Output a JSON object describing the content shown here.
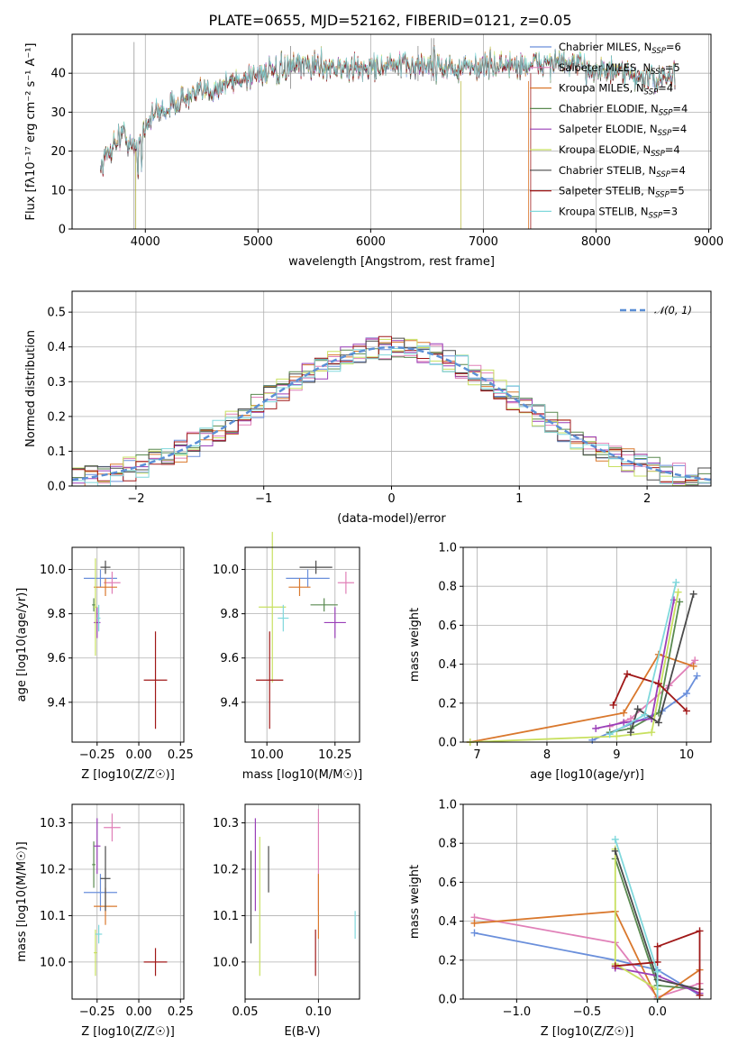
{
  "colors": {
    "cornflower": "#6a8fdb",
    "orange": "#d9782d",
    "green": "#5a8a50",
    "purple": "#9a3fb8",
    "yellowgreen": "#c8e060",
    "darkgrey": "#4a4a4a",
    "darkred": "#a01818",
    "cyan": "#80d8dc",
    "pink": "#e080b8",
    "spectrum_fit_dashed": "#5b8fd6"
  },
  "chart_data": [
    {
      "type": "line",
      "title": "PLATE=0655, MJD=52162, FIBERID=0121, z=0.05",
      "xlabel": "wavelength [Angstrom, rest frame]",
      "ylabel": "Flux [fλ10⁻¹⁷ erg cm⁻² s⁻¹ A⁻¹]",
      "xlim": [
        3350,
        9020
      ],
      "ylim": [
        0,
        50
      ],
      "xticks": [
        "4000",
        "5000",
        "6000",
        "7000",
        "8000",
        "9000"
      ],
      "yticks": [
        "0",
        "10",
        "20",
        "30",
        "40"
      ],
      "legend_position": "upper-right",
      "series": [
        {
          "name": "Chabrier MILES, N_SSP=6",
          "color": "cornflower"
        },
        {
          "name": "Salpeter MILES, N_SSP=5",
          "color": "pink"
        },
        {
          "name": "Kroupa MILES, N_SSP=4",
          "color": "orange"
        },
        {
          "name": "Chabrier ELODIE, N_SSP=4",
          "color": "green"
        },
        {
          "name": "Salpeter ELODIE, N_SSP=4",
          "color": "purple"
        },
        {
          "name": "Kroupa ELODIE, N_SSP=4",
          "color": "yellowgreen"
        },
        {
          "name": "Chabrier STELIB, N_SSP=4",
          "color": "darkgrey"
        },
        {
          "name": "Salpeter STELIB, N_SSP=5",
          "color": "darkred"
        },
        {
          "name": "Kroupa STELIB, N_SSP=3",
          "color": "cyan"
        }
      ],
      "continuum": {
        "x": [
          3600,
          3700,
          3800,
          3900,
          4000,
          4100,
          4200,
          4300,
          4400,
          4600,
          4800,
          5000,
          5200,
          5400,
          5600,
          5800,
          6000,
          6200,
          6400,
          6600,
          6800,
          7000,
          7200,
          7400,
          7600,
          7800,
          8000,
          8200,
          8400,
          8600,
          8700
        ],
        "y": [
          16,
          21,
          25,
          20,
          27,
          30,
          31,
          33,
          34,
          36,
          38,
          40,
          41,
          42,
          42,
          41,
          41.5,
          42,
          42,
          42,
          41,
          42,
          42,
          42,
          43,
          42,
          41,
          40,
          39,
          38,
          40
        ]
      }
    },
    {
      "type": "bar",
      "xlabel": "(data-model)/error",
      "ylabel": "Normed distribution",
      "xlim": [
        -2.5,
        2.5
      ],
      "ylim": [
        0,
        0.56
      ],
      "xticks": [
        "−2",
        "−1",
        "0",
        "1",
        "2"
      ],
      "yticks": [
        "0.0",
        "0.1",
        "0.2",
        "0.3",
        "0.4",
        "0.5"
      ],
      "legend": "𝒩(0, 1)",
      "legend_position": "upper-right",
      "bin_width": 0.1,
      "series_colors": [
        "cornflower",
        "pink",
        "orange",
        "green",
        "purple",
        "yellowgreen",
        "darkgrey",
        "darkred",
        "cyan"
      ]
    },
    {
      "type": "scatter",
      "xlabel": "Z [log10(Z/Z☉)]",
      "ylabel": "age  [log10(age/yr)]",
      "xlim": [
        -0.4,
        0.27
      ],
      "ylim": [
        9.22,
        10.1
      ],
      "xticks": [
        "−0.25",
        "0.00",
        "0.25"
      ],
      "yticks": [
        "9.4",
        "9.6",
        "9.8",
        "10.0"
      ],
      "points": [
        {
          "series": "cornflower",
          "x": -0.23,
          "y": 9.96,
          "xerr": 0.1,
          "yerr": 0.04
        },
        {
          "series": "pink",
          "x": -0.16,
          "y": 9.94,
          "xerr": 0.05,
          "yerr": 0.05
        },
        {
          "series": "orange",
          "x": -0.2,
          "y": 9.92,
          "xerr": 0.07,
          "yerr": 0.04
        },
        {
          "series": "green",
          "x": -0.27,
          "y": 9.84,
          "xerr": 0.01,
          "yerr": 0.03
        },
        {
          "series": "purple",
          "x": -0.25,
          "y": 9.76,
          "xerr": 0.02,
          "yerr": 0.07
        },
        {
          "series": "yellowgreen",
          "x": -0.26,
          "y": 9.83,
          "xerr": 0.01,
          "yerr": 0.22
        },
        {
          "series": "darkgrey",
          "x": -0.2,
          "y": 10.01,
          "xerr": 0.03,
          "yerr": 0.03
        },
        {
          "series": "darkred",
          "x": 0.1,
          "y": 9.5,
          "xerr": 0.07,
          "yerr": 0.22
        },
        {
          "series": "cyan",
          "x": -0.24,
          "y": 9.78,
          "xerr": 0.01,
          "yerr": 0.06
        }
      ]
    },
    {
      "type": "scatter",
      "xlabel": "mass [log10(M/M☉)]",
      "ylabel": "",
      "xlim": [
        9.92,
        10.34
      ],
      "ylim": [
        9.22,
        10.1
      ],
      "xticks": [
        "10.00",
        "10.25"
      ],
      "yticks": [
        "9.4",
        "9.6",
        "9.8",
        "10.0"
      ],
      "points": [
        {
          "series": "cornflower",
          "x": 10.15,
          "y": 9.96,
          "xerr": 0.08,
          "yerr": 0.04
        },
        {
          "series": "pink",
          "x": 10.29,
          "y": 9.94,
          "xerr": 0.03,
          "yerr": 0.05
        },
        {
          "series": "orange",
          "x": 10.12,
          "y": 9.92,
          "xerr": 0.04,
          "yerr": 0.04
        },
        {
          "series": "green",
          "x": 10.21,
          "y": 9.84,
          "xerr": 0.05,
          "yerr": 0.03
        },
        {
          "series": "purple",
          "x": 10.25,
          "y": 9.76,
          "xerr": 0.04,
          "yerr": 0.07
        },
        {
          "series": "yellowgreen",
          "x": 10.02,
          "y": 9.83,
          "xerr": 0.05,
          "yerr": 0.34
        },
        {
          "series": "darkgrey",
          "x": 10.18,
          "y": 10.01,
          "xerr": 0.06,
          "yerr": 0.03
        },
        {
          "series": "darkred",
          "x": 10.01,
          "y": 9.5,
          "xerr": 0.05,
          "yerr": 0.22
        },
        {
          "series": "cyan",
          "x": 10.06,
          "y": 9.78,
          "xerr": 0.02,
          "yerr": 0.06
        }
      ]
    },
    {
      "type": "line",
      "xlabel": "age  [log10(age/yr)]",
      "ylabel": "mass weight",
      "xlim": [
        6.8,
        10.35
      ],
      "ylim": [
        0,
        1.0
      ],
      "xticks": [
        "7",
        "8",
        "9",
        "10"
      ],
      "yticks": [
        "0.0",
        "0.2",
        "0.4",
        "0.6",
        "0.8",
        "1.0"
      ],
      "series": [
        {
          "color": "cornflower",
          "x": [
            8.65,
            9.65,
            10.0,
            10.15
          ],
          "y": [
            0.01,
            0.16,
            0.25,
            0.34
          ]
        },
        {
          "color": "pink",
          "x": [
            8.9,
            9.2,
            9.75,
            10.12
          ],
          "y": [
            0.08,
            0.12,
            0.29,
            0.42
          ]
        },
        {
          "color": "orange",
          "x": [
            6.9,
            9.1,
            9.6,
            10.1
          ],
          "y": [
            0.0,
            0.15,
            0.45,
            0.39
          ]
        },
        {
          "color": "green",
          "x": [
            8.9,
            9.2,
            9.6,
            9.9
          ],
          "y": [
            0.05,
            0.07,
            0.15,
            0.72
          ]
        },
        {
          "color": "purple",
          "x": [
            8.7,
            9.1,
            9.5,
            9.82
          ],
          "y": [
            0.07,
            0.1,
            0.12,
            0.73
          ]
        },
        {
          "color": "yellowgreen",
          "x": [
            6.9,
            9.0,
            9.5,
            9.88
          ],
          "y": [
            0.0,
            0.03,
            0.05,
            0.77
          ]
        },
        {
          "color": "darkgrey",
          "x": [
            9.2,
            9.3,
            9.6,
            10.1
          ],
          "y": [
            0.05,
            0.17,
            0.1,
            0.76
          ]
        },
        {
          "color": "darkred",
          "x": [
            8.95,
            9.15,
            9.6,
            10.0
          ],
          "y": [
            0.19,
            0.35,
            0.3,
            0.16
          ]
        },
        {
          "color": "cyan",
          "x": [
            8.9,
            9.4,
            9.85
          ],
          "y": [
            0.04,
            0.14,
            0.82
          ]
        }
      ]
    },
    {
      "type": "scatter",
      "xlabel": "Z [log10(Z/Z☉)]",
      "ylabel": "mass [log10(M/M☉)]",
      "xlim": [
        -0.4,
        0.27
      ],
      "ylim": [
        9.92,
        10.34
      ],
      "xticks": [
        "−0.25",
        "0.00",
        "0.25"
      ],
      "yticks": [
        "10.0",
        "10.1",
        "10.2",
        "10.3"
      ],
      "points": [
        {
          "series": "cornflower",
          "x": -0.23,
          "y": 10.15,
          "xerr": 0.1,
          "yerr": 0.04
        },
        {
          "series": "pink",
          "x": -0.16,
          "y": 10.29,
          "xerr": 0.05,
          "yerr": 0.03
        },
        {
          "series": "orange",
          "x": -0.2,
          "y": 10.12,
          "xerr": 0.07,
          "yerr": 0.04
        },
        {
          "series": "green",
          "x": -0.27,
          "y": 10.21,
          "xerr": 0.01,
          "yerr": 0.05
        },
        {
          "series": "purple",
          "x": -0.25,
          "y": 10.25,
          "xerr": 0.02,
          "yerr": 0.06
        },
        {
          "series": "yellowgreen",
          "x": -0.26,
          "y": 10.02,
          "xerr": 0.01,
          "yerr": 0.05
        },
        {
          "series": "darkgrey",
          "x": -0.2,
          "y": 10.18,
          "xerr": 0.03,
          "yerr": 0.07
        },
        {
          "series": "darkred",
          "x": 0.1,
          "y": 10.0,
          "xerr": 0.07,
          "yerr": 0.03
        },
        {
          "series": "cyan",
          "x": -0.24,
          "y": 10.06,
          "xerr": 0.02,
          "yerr": 0.02
        }
      ]
    },
    {
      "type": "scatter",
      "xlabel": "E(B-V)",
      "ylabel": "",
      "xlim": [
        0.05,
        0.128
      ],
      "ylim": [
        9.92,
        10.34
      ],
      "xticks": [
        "0.05",
        "0.10"
      ],
      "yticks": [
        "10.0",
        "10.1",
        "10.2",
        "10.3"
      ],
      "points": [
        {
          "series": "darkgrey",
          "x": 0.054,
          "y": 10.14,
          "xerr": 0.0,
          "yerr": 0.1
        },
        {
          "series": "purple",
          "x": 0.057,
          "y": 10.21,
          "xerr": 0.0,
          "yerr": 0.1
        },
        {
          "series": "yellowgreen",
          "x": 0.06,
          "y": 10.12,
          "xerr": 0.0,
          "yerr": 0.15
        },
        {
          "series": "darkgrey",
          "x": 0.066,
          "y": 10.2,
          "xerr": 0.0,
          "yerr": 0.05
        },
        {
          "series": "pink",
          "x": 0.1,
          "y": 10.22,
          "xerr": 0.0,
          "yerr": 0.11
        },
        {
          "series": "orange",
          "x": 0.1,
          "y": 10.12,
          "xerr": 0.0,
          "yerr": 0.07
        },
        {
          "series": "darkred",
          "x": 0.098,
          "y": 10.02,
          "xerr": 0.0,
          "yerr": 0.05
        },
        {
          "series": "cyan",
          "x": 0.125,
          "y": 10.08,
          "xerr": 0.0,
          "yerr": 0.03
        }
      ]
    },
    {
      "type": "line",
      "xlabel": "Z [log10(Z/Z☉)]",
      "ylabel": "mass weight",
      "xlim": [
        -1.38,
        0.38
      ],
      "ylim": [
        0,
        1.0
      ],
      "xticks": [
        "−1.0",
        "−0.5",
        "0.0"
      ],
      "yticks": [
        "0.0",
        "0.2",
        "0.4",
        "0.6",
        "0.8",
        "1.0"
      ],
      "series": [
        {
          "color": "cornflower",
          "x": [
            -1.3,
            -0.3,
            0.0,
            0.3
          ],
          "y": [
            0.34,
            0.2,
            0.15,
            0.02
          ]
        },
        {
          "color": "pink",
          "x": [
            -1.3,
            -0.3,
            0.0,
            0.3
          ],
          "y": [
            0.42,
            0.29,
            0.01,
            0.08
          ]
        },
        {
          "color": "orange",
          "x": [
            -1.3,
            -0.3,
            0.0,
            0.3
          ],
          "y": [
            0.39,
            0.45,
            0.0,
            0.15
          ]
        },
        {
          "color": "green",
          "x": [
            -0.3,
            0.0,
            0.3
          ],
          "y": [
            0.72,
            0.07,
            0.05
          ]
        },
        {
          "color": "purple",
          "x": [
            -0.3,
            0.0,
            0.3
          ],
          "y": [
            0.16,
            0.12,
            0.03
          ]
        },
        {
          "color": "yellowgreen",
          "x": [
            -0.3,
            -0.3,
            0.0
          ],
          "y": [
            0.77,
            0.18,
            0.05
          ]
        },
        {
          "color": "darkgrey",
          "x": [
            -0.3,
            0.0,
            0.3
          ],
          "y": [
            0.76,
            0.1,
            0.05
          ]
        },
        {
          "color": "darkred",
          "x": [
            -0.3,
            0.0,
            0.0,
            0.3,
            0.3
          ],
          "y": [
            0.17,
            0.19,
            0.27,
            0.35,
            0.02
          ]
        },
        {
          "color": "cyan",
          "x": [
            -0.3,
            0.0,
            0.0
          ],
          "y": [
            0.82,
            0.14,
            0.0
          ]
        }
      ]
    }
  ]
}
